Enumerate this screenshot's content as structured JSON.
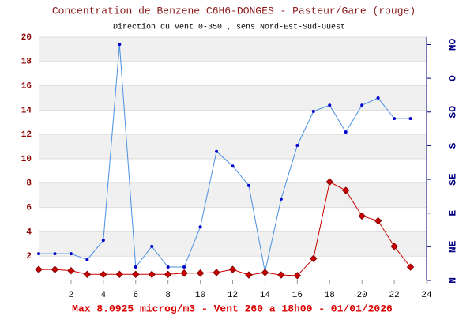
{
  "chart_data": {
    "type": "line",
    "title": "Concentration de Benzene C6H6-DONGES - Pasteur/Gare (rouge)",
    "subtitle": "Direction du vent 0-350 , sens Nord-Est-Sud-Ouest",
    "caption": "Max 8.0925 microg/m3 - Vent 260  a 18h00 - 01/01/2026",
    "x": [
      0,
      1,
      2,
      3,
      4,
      5,
      6,
      7,
      8,
      9,
      10,
      11,
      12,
      13,
      14,
      15,
      16,
      17,
      18,
      19,
      20,
      21,
      22,
      23
    ],
    "series": [
      {
        "color": "#4a90e2",
        "values": [
          2.2,
          2.2,
          2.2,
          1.7,
          3.3,
          19.4,
          1.1,
          2.8,
          1.1,
          1.1,
          4.4,
          10.6,
          9.4,
          7.8,
          0.7,
          6.7,
          11.1,
          13.9,
          14.4,
          12.2,
          14.4,
          15.0,
          13.3,
          13.3
        ]
      },
      {
        "color": "#cc0000",
        "values": [
          0.9,
          0.9,
          0.8,
          0.5,
          0.5,
          0.5,
          0.5,
          0.5,
          0.5,
          0.6,
          0.6,
          0.65,
          0.9,
          0.45,
          0.65,
          0.45,
          0.4,
          1.8,
          8.1,
          7.4,
          5.3,
          4.9,
          2.8,
          1.1
        ]
      }
    ],
    "xlim": [
      0,
      24
    ],
    "xticks": [
      2,
      4,
      6,
      8,
      10,
      12,
      14,
      16,
      18,
      20,
      22,
      24
    ],
    "ylim": [
      0,
      20
    ],
    "yticks": [
      2,
      4,
      6,
      8,
      10,
      12,
      14,
      16,
      18,
      20
    ],
    "y2lim": [
      0,
      325
    ],
    "y2ticks": [
      {
        "value": 0,
        "label": "N"
      },
      {
        "value": 45,
        "label": "NE"
      },
      {
        "value": 90,
        "label": "E"
      },
      {
        "value": 135,
        "label": "SE"
      },
      {
        "value": 180,
        "label": "S"
      },
      {
        "value": 225,
        "label": "SO"
      },
      {
        "value": 270,
        "label": "O"
      },
      {
        "value": 315,
        "label": "NO"
      }
    ],
    "grid": true
  }
}
